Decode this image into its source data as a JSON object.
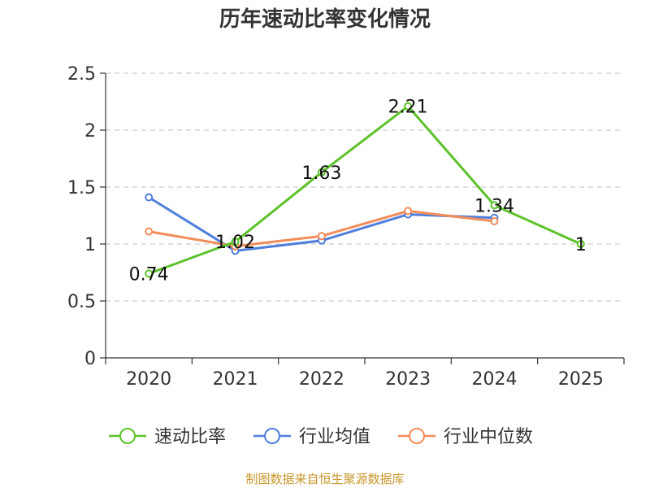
{
  "chart_data": {
    "type": "line",
    "title": "历年速动比率变化情况",
    "categories": [
      "2020",
      "2021",
      "2022",
      "2023",
      "2024",
      "2025"
    ],
    "ylim": [
      0,
      2.5
    ],
    "yticks": [
      "0",
      "0.5",
      "1",
      "1.5",
      "2",
      "2.5"
    ],
    "grid": true,
    "legend_position": "bottom",
    "series": [
      {
        "name": "速动比率",
        "color": "#5cc22a",
        "values": [
          0.74,
          1.02,
          1.63,
          2.21,
          1.34,
          1
        ],
        "labels": [
          "0.74",
          "1.02",
          "1.63",
          "2.21",
          "1.34",
          "1"
        ]
      },
      {
        "name": "行业均值",
        "color": "#4f7fdb",
        "values": [
          1.41,
          0.94,
          1.03,
          1.26,
          1.23,
          null
        ]
      },
      {
        "name": "行业中位数",
        "color": "#f28c5a",
        "values": [
          1.11,
          0.98,
          1.07,
          1.29,
          1.2,
          null
        ]
      }
    ],
    "source": "制图数据来自恒生聚源数据库"
  }
}
